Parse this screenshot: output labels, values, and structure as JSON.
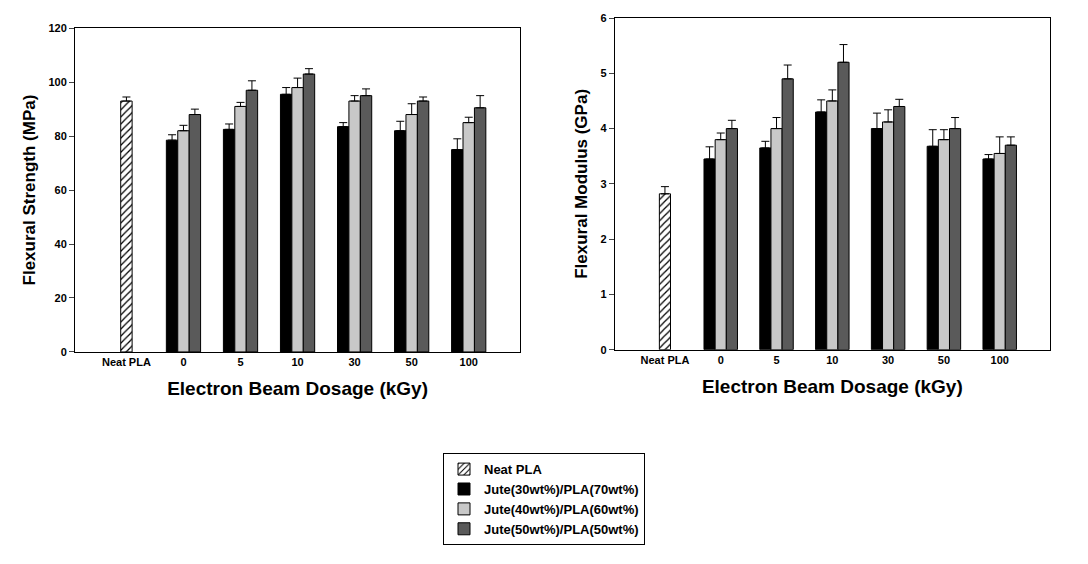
{
  "chart_data": [
    {
      "type": "bar",
      "x_label": "Electron Beam Dosage (kGy)",
      "y_label": "Flexural Strength (MPa)",
      "categories": [
        "Neat PLA",
        "0",
        "5",
        "10",
        "30",
        "50",
        "100"
      ],
      "ylim": [
        0,
        120
      ],
      "yticks": [
        0,
        20,
        40,
        60,
        80,
        100,
        120
      ],
      "legend": "bottom",
      "series": [
        {
          "name": "Neat PLA",
          "color": "#ffffff",
          "marker": "hatched",
          "values": [
            93,
            null,
            null,
            null,
            null,
            null,
            null
          ],
          "error": [
            1.5,
            null,
            null,
            null,
            null,
            null,
            null
          ]
        },
        {
          "name": "Jute(30wt%)/PLA(70wt%)",
          "color": "#000000",
          "values": [
            null,
            78.5,
            82.5,
            95.5,
            83.5,
            82,
            75
          ],
          "error": [
            null,
            2,
            2,
            2.5,
            1.5,
            3.5,
            4
          ]
        },
        {
          "name": "Jute(40wt%)/PLA(60wt%)",
          "color": "#c8c8c8",
          "values": [
            null,
            82,
            91,
            98,
            93,
            88,
            85
          ],
          "error": [
            null,
            2,
            1.5,
            3.5,
            2,
            4,
            2
          ]
        },
        {
          "name": "Jute(50wt%)/PLA(50wt%)",
          "color": "#5a5a5a",
          "values": [
            null,
            88,
            97,
            103,
            95,
            93,
            90.5
          ],
          "error": [
            null,
            2,
            3.5,
            2,
            2.5,
            1.5,
            4.5
          ]
        }
      ]
    },
    {
      "type": "bar",
      "x_label": "Electron Beam Dosage (kGy)",
      "y_label": "Flexural Modulus (GPa)",
      "categories": [
        "Neat PLA",
        "0",
        "5",
        "10",
        "30",
        "50",
        "100"
      ],
      "ylim": [
        0,
        6
      ],
      "yticks": [
        0,
        1,
        2,
        3,
        4,
        5,
        6
      ],
      "series": [
        {
          "name": "Neat PLA",
          "color": "#ffffff",
          "marker": "hatched",
          "values": [
            2.82,
            null,
            null,
            null,
            null,
            null,
            null
          ],
          "error": [
            0.13,
            null,
            null,
            null,
            null,
            null,
            null
          ]
        },
        {
          "name": "Jute(30wt%)/PLA(70wt%)",
          "color": "#000000",
          "values": [
            null,
            3.45,
            3.65,
            4.3,
            4.0,
            3.68,
            3.45
          ],
          "error": [
            null,
            0.22,
            0.12,
            0.22,
            0.28,
            0.3,
            0.08
          ]
        },
        {
          "name": "Jute(40wt%)/PLA(60wt%)",
          "color": "#c8c8c8",
          "values": [
            null,
            3.8,
            4.0,
            4.5,
            4.12,
            3.8,
            3.55
          ],
          "error": [
            null,
            0.12,
            0.2,
            0.2,
            0.22,
            0.18,
            0.3
          ]
        },
        {
          "name": "Jute(50wt%)/PLA(50wt%)",
          "color": "#5a5a5a",
          "values": [
            null,
            4.0,
            4.9,
            5.2,
            4.4,
            4.0,
            3.7
          ],
          "error": [
            null,
            0.15,
            0.25,
            0.32,
            0.13,
            0.2,
            0.15
          ]
        }
      ]
    }
  ]
}
